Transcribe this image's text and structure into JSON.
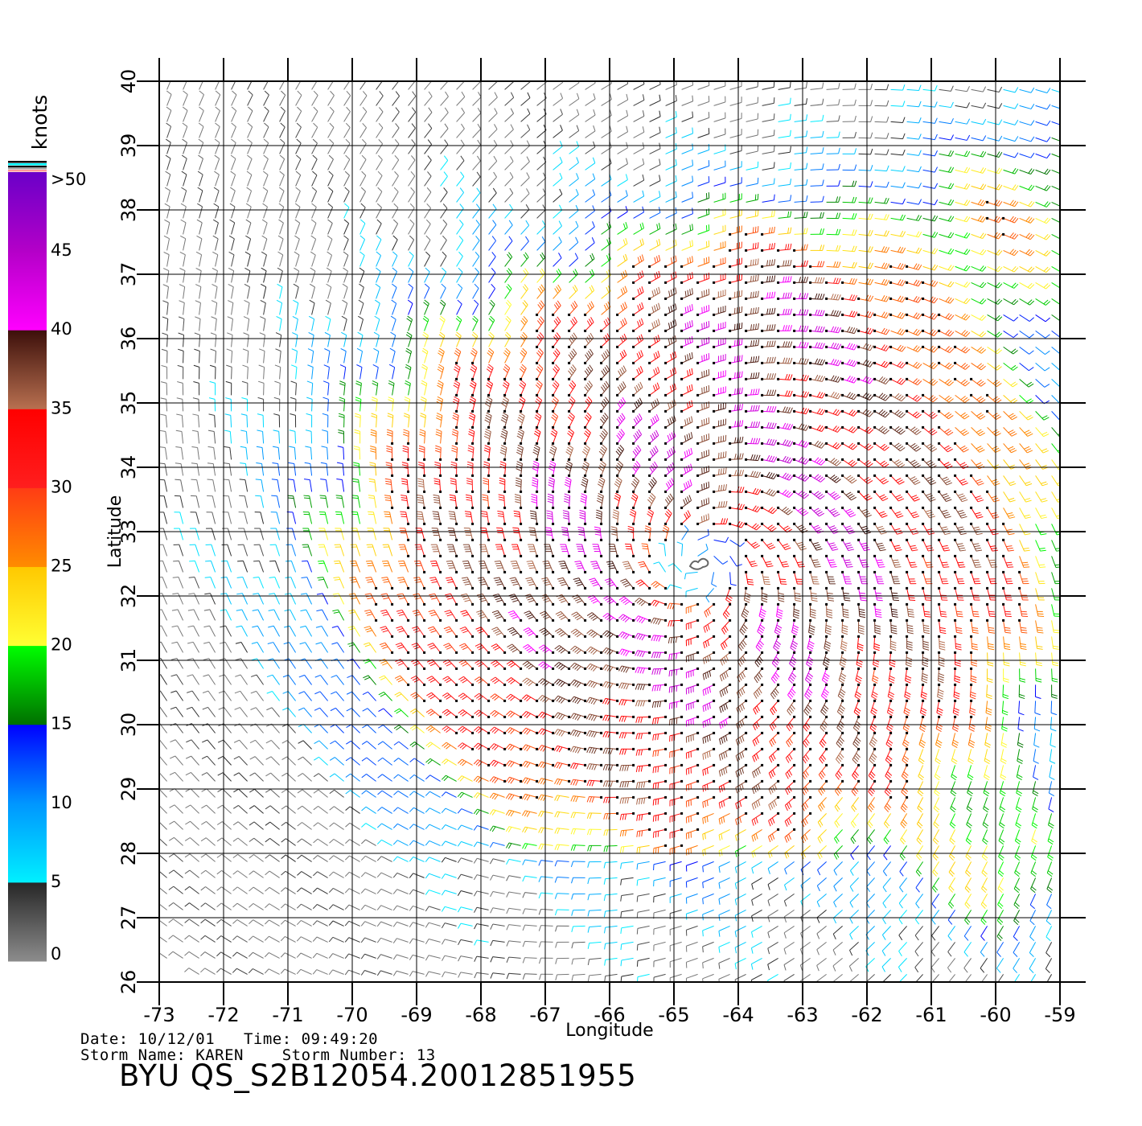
{
  "chart_data": {
    "type": "scatter",
    "subtype": "wind barb field",
    "xlabel": "Longitude",
    "ylabel": "Latitude",
    "xlim": [
      -73,
      -59
    ],
    "ylim": [
      26,
      40
    ],
    "x_ticks": [
      "-73",
      "-72",
      "-71",
      "-70",
      "-69",
      "-68",
      "-67",
      "-66",
      "-65",
      "-64",
      "-63",
      "-62",
      "-61",
      "-60",
      "-59"
    ],
    "y_ticks": [
      "26",
      "27",
      "28",
      "29",
      "30",
      "31",
      "32",
      "33",
      "34",
      "35",
      "36",
      "37",
      "38",
      "39",
      "40"
    ],
    "grid": true,
    "storm_center": {
      "lon": -64.6,
      "lat": 32.5
    },
    "colorbar": {
      "unit_label": "knots",
      "tick_labels": [
        "0",
        "5",
        "10",
        "15",
        "20",
        "25",
        "30",
        "35",
        "40",
        "45",
        ">50"
      ],
      "bands": [
        {
          "from": 0,
          "to": 5,
          "colors": [
            "#8c8c8c",
            "#262626"
          ]
        },
        {
          "from": 5,
          "to": 10,
          "colors": [
            "#00f0ff",
            "#0096ff"
          ]
        },
        {
          "from": 10,
          "to": 15,
          "colors": [
            "#0096ff",
            "#0000ff"
          ]
        },
        {
          "from": 15,
          "to": 20,
          "colors": [
            "#007000",
            "#00ff00"
          ]
        },
        {
          "from": 20,
          "to": 25,
          "colors": [
            "#ffff33",
            "#ffc800"
          ]
        },
        {
          "from": 25,
          "to": 30,
          "colors": [
            "#ff8c00",
            "#ff3c14"
          ]
        },
        {
          "from": 30,
          "to": 35,
          "colors": [
            "#ff1e1e",
            "#ff0000"
          ]
        },
        {
          "from": 35,
          "to": 40,
          "colors": [
            "#b87050",
            "#3c0f0a"
          ]
        },
        {
          "from": 40,
          "to": 45,
          "colors": [
            "#ff00ff",
            "#b400c8"
          ]
        },
        {
          "from": 45,
          "to": 50,
          "colors": [
            "#b400c8",
            "#6a00c8"
          ]
        }
      ]
    }
  },
  "footer": {
    "date_line": "Date: 10/12/01   Time: 09:49:20",
    "storm_line": "Storm Name: KAREN    Storm Number: 13",
    "product_title": "BYU QS_S2B12054.20012851955"
  }
}
